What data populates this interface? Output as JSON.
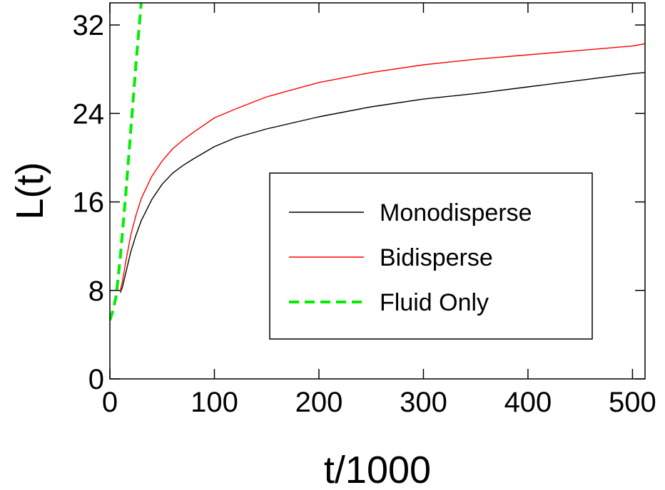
{
  "chart_data": {
    "type": "line",
    "title": "",
    "xlabel": "t/1000",
    "ylabel": "L(t)",
    "xlim": [
      0,
      512
    ],
    "ylim": [
      0,
      34
    ],
    "xticks": [
      0,
      100,
      200,
      300,
      400,
      500
    ],
    "yticks": [
      0,
      8,
      16,
      24,
      32
    ],
    "grid": false,
    "legend_position": "center-right",
    "series": [
      {
        "name": "Monodisperse",
        "color": "#000000",
        "style": "solid",
        "x": [
          10,
          12,
          15,
          20,
          25,
          30,
          40,
          50,
          60,
          70,
          80,
          100,
          120,
          150,
          200,
          250,
          300,
          350,
          400,
          450,
          500,
          512
        ],
        "y": [
          7.8,
          8.3,
          9.5,
          11.5,
          13.0,
          14.3,
          16.2,
          17.6,
          18.6,
          19.3,
          19.9,
          21.0,
          21.8,
          22.6,
          23.7,
          24.6,
          25.3,
          25.8,
          26.4,
          27.0,
          27.6,
          27.7
        ]
      },
      {
        "name": "Bidisperse",
        "color": "#ff0000",
        "style": "solid",
        "x": [
          10,
          12,
          15,
          20,
          25,
          30,
          40,
          50,
          60,
          70,
          80,
          100,
          120,
          150,
          200,
          250,
          300,
          350,
          400,
          450,
          500,
          512
        ],
        "y": [
          8.0,
          8.8,
          10.5,
          13.0,
          14.8,
          16.3,
          18.3,
          19.7,
          20.8,
          21.6,
          22.3,
          23.6,
          24.4,
          25.5,
          26.8,
          27.7,
          28.4,
          28.9,
          29.3,
          29.7,
          30.1,
          30.3
        ]
      },
      {
        "name": "Fluid Only",
        "color": "#00ee00",
        "style": "dashed",
        "x": [
          0,
          3,
          6,
          10,
          15,
          20,
          25,
          30
        ],
        "y": [
          5.3,
          6.2,
          7.5,
          11.0,
          16.5,
          22.5,
          28.5,
          34.0
        ]
      }
    ]
  }
}
